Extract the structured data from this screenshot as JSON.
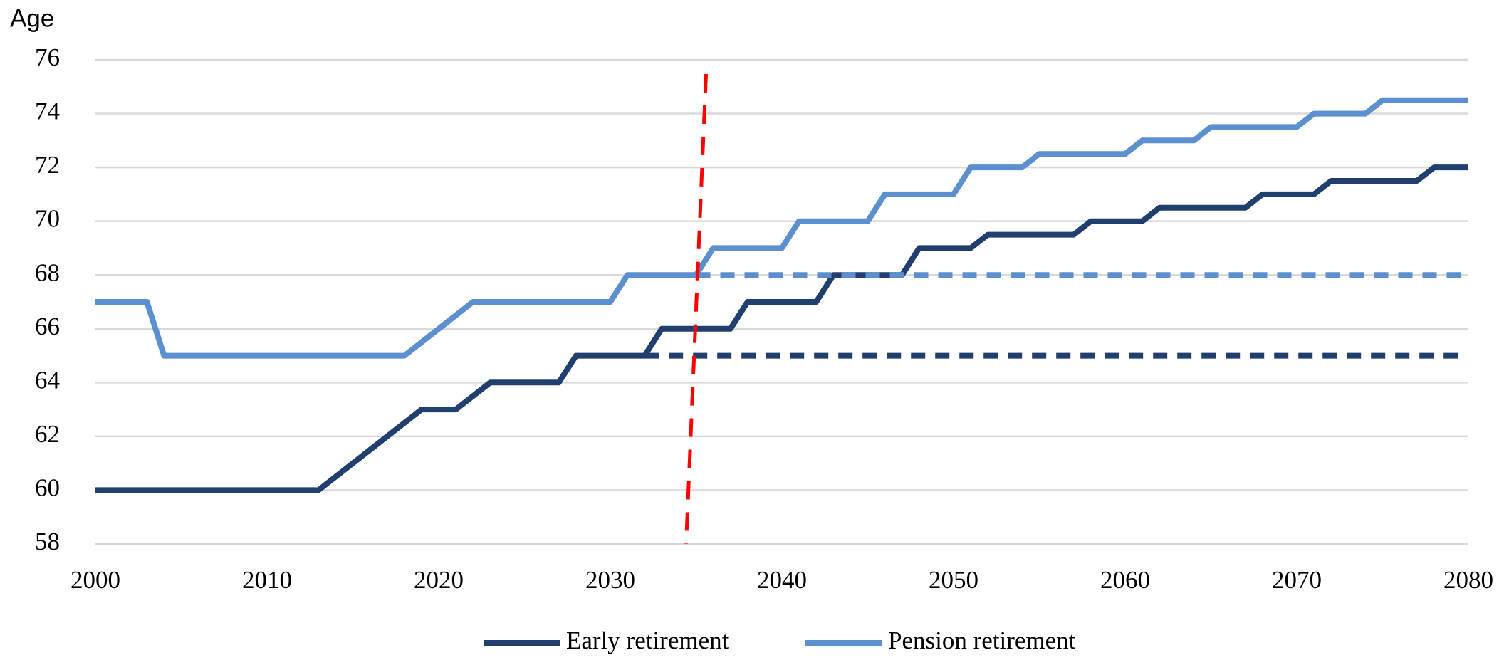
{
  "chart_data": {
    "type": "line",
    "y_label": "Age",
    "xlim": [
      2000,
      2080
    ],
    "xticks": [
      2000,
      2010,
      2020,
      2030,
      2040,
      2050,
      2060,
      2070,
      2080
    ],
    "ylim": [
      58,
      76
    ],
    "yticks": [
      58,
      60,
      62,
      64,
      66,
      68,
      70,
      72,
      74,
      76
    ],
    "grid": true,
    "legend": "bottom",
    "series": [
      {
        "name": "Early retirement",
        "color": "#203f6f",
        "linestyle": "solid",
        "x": [
          2000,
          2013,
          2019,
          2021,
          2023,
          2027,
          2028,
          2032,
          2033,
          2037,
          2038,
          2042,
          2043,
          2047,
          2048,
          2051,
          2052,
          2057,
          2058,
          2061,
          2062,
          2067,
          2068,
          2071,
          2072,
          2077,
          2078,
          2080
        ],
        "values": [
          60,
          60,
          63,
          63,
          64,
          64,
          65,
          65,
          66,
          66,
          67,
          67,
          68,
          68,
          69,
          69,
          69.5,
          69.5,
          70,
          70,
          70.5,
          70.5,
          71,
          71,
          71.5,
          71.5,
          72,
          72
        ]
      },
      {
        "name": "Pension retirement",
        "color": "#5b8fd0",
        "linestyle": "solid",
        "x": [
          2000,
          2003,
          2004,
          2018,
          2022,
          2030,
          2031,
          2035,
          2036,
          2040,
          2041,
          2045,
          2046,
          2050,
          2051,
          2054,
          2055,
          2060,
          2061,
          2064,
          2065,
          2070,
          2071,
          2074,
          2075,
          2080
        ],
        "values": [
          67,
          67,
          65,
          65,
          67,
          67,
          68,
          68,
          69,
          69,
          70,
          70,
          71,
          71,
          72,
          72,
          72.5,
          72.5,
          73,
          73,
          73.5,
          73.5,
          74,
          74,
          74.5,
          74.5
        ]
      },
      {
        "color": "#203f6f",
        "linestyle": "dashed",
        "x": [
          2032,
          2080
        ],
        "values": [
          65,
          65
        ]
      },
      {
        "color": "#5b8fd0",
        "linestyle": "dashed",
        "x": [
          2035,
          2080
        ],
        "values": [
          68,
          68
        ]
      }
    ],
    "vline": {
      "x": 2035,
      "color": "#ff0000",
      "linestyle": "dashed"
    }
  }
}
